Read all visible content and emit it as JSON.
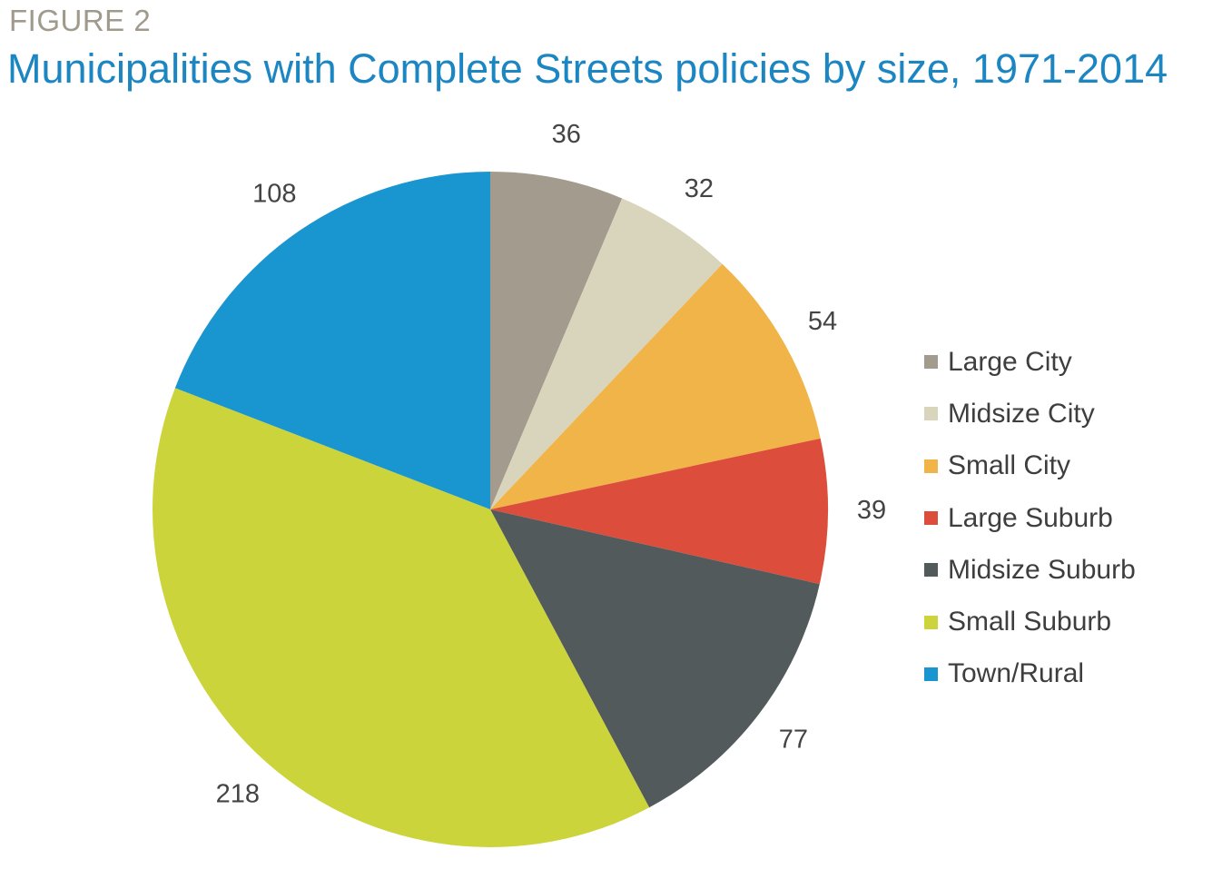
{
  "figure_label": "FIGURE 2",
  "title": "Municipalities with Complete Streets policies by size, 1971-2014",
  "chart_data": {
    "type": "pie",
    "title": "Municipalities with Complete Streets policies by size, 1971-2014",
    "start_angle": "12 o'clock, clockwise",
    "legend_position": "right",
    "slices": [
      {
        "label": "Large City",
        "value": 36,
        "color": "#a39b8e"
      },
      {
        "label": "Midsize City",
        "value": 32,
        "color": "#d9d5bc"
      },
      {
        "label": "Small City",
        "value": 54,
        "color": "#f0b448"
      },
      {
        "label": "Large Suburb",
        "value": 39,
        "color": "#dd4d3b"
      },
      {
        "label": "Midsize Suburb",
        "value": 77,
        "color": "#535a5c"
      },
      {
        "label": "Small Suburb",
        "value": 218,
        "color": "#ccd43b"
      },
      {
        "label": "Town/Rural",
        "value": 108,
        "color": "#1995cf"
      }
    ]
  }
}
